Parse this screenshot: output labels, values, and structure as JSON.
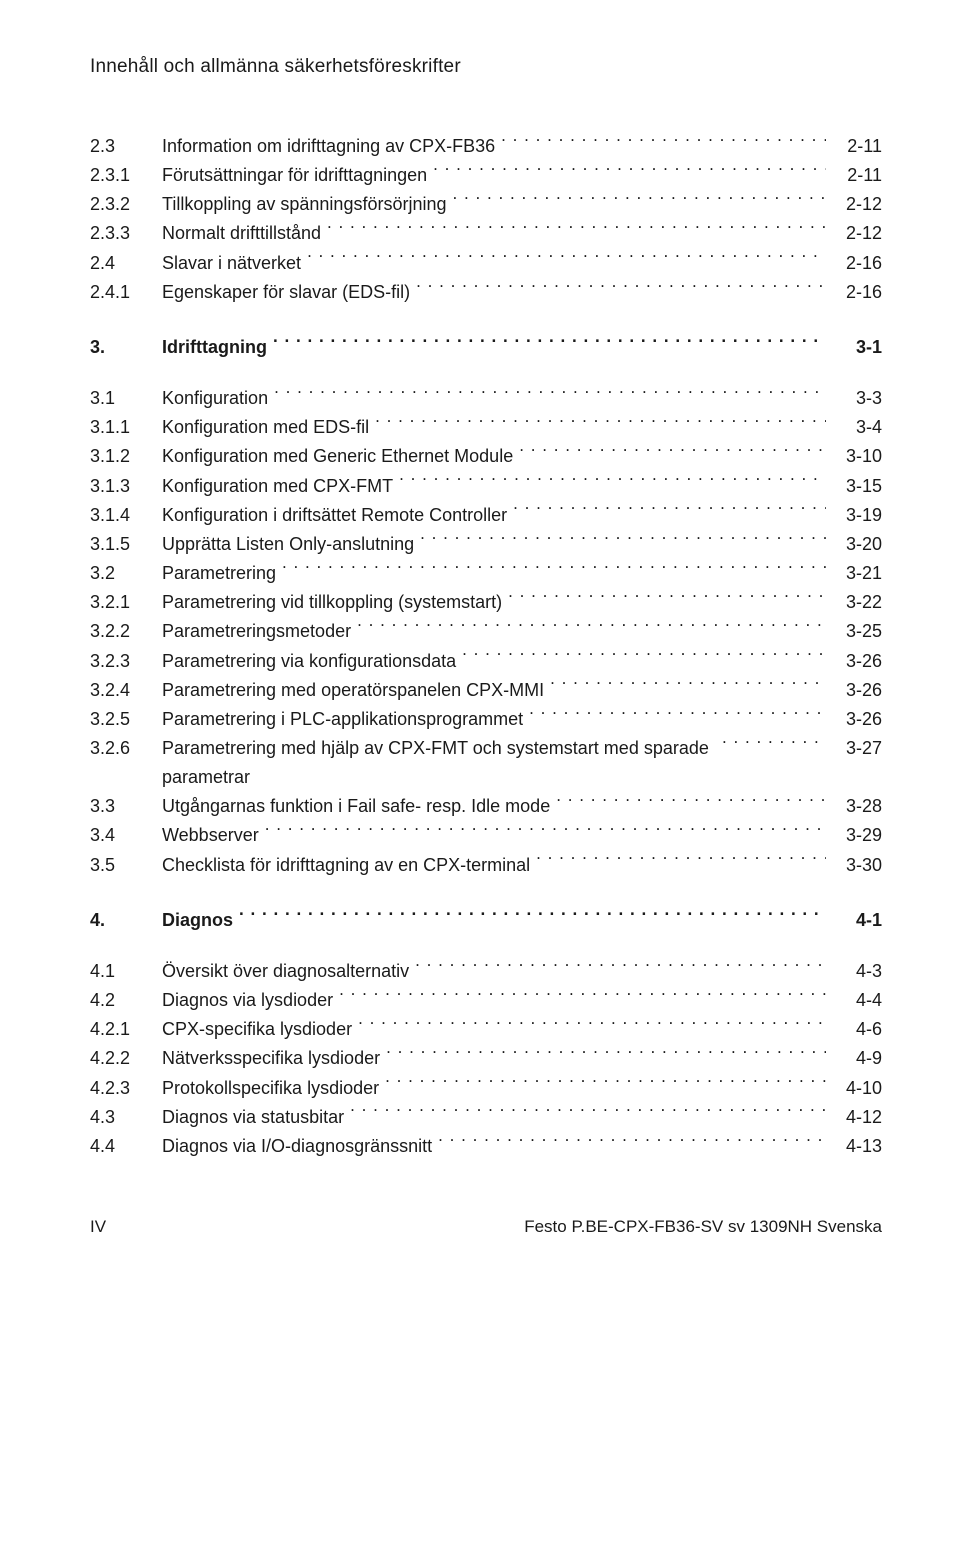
{
  "running_head": "Innehåll och allmänna säkerhetsföreskrifter",
  "footer": {
    "page_num": "IV",
    "doc_ref": "Festo P.BE-CPX-FB36-SV sv 1309NH Svenska"
  },
  "groups": [
    {
      "spacing": "block",
      "rows": [
        {
          "num": "2.3",
          "title": "Information om idrifttagning av CPX-FB36",
          "page": "2-11"
        },
        {
          "num": "2.3.1",
          "title": "Förutsättningar för idrifttagningen",
          "page": "2-11",
          "sub": true
        },
        {
          "num": "2.3.2",
          "title": "Tillkoppling av spänningsförsörjning",
          "page": "2-12",
          "sub": true
        },
        {
          "num": "2.3.3",
          "title": "Normalt drifttillstånd",
          "page": "2-12",
          "sub": true
        },
        {
          "num": "2.4",
          "title": "Slavar i nätverket",
          "page": "2-16"
        },
        {
          "num": "2.4.1",
          "title": "Egenskaper för slavar (EDS-fil)",
          "page": "2-16",
          "sub": true
        }
      ]
    },
    {
      "spacing": "chapter",
      "rows": [
        {
          "num": "3.",
          "title": "Idrifttagning",
          "page": "3-1",
          "bold": true
        }
      ]
    },
    {
      "spacing": "block",
      "rows": [
        {
          "num": "3.1",
          "title": "Konfiguration",
          "page": "3-3"
        },
        {
          "num": "3.1.1",
          "title": "Konfiguration med EDS-fil",
          "page": "3-4",
          "sub": true
        },
        {
          "num": "3.1.2",
          "title": "Konfiguration med Generic Ethernet Module",
          "page": "3-10",
          "sub": true
        },
        {
          "num": "3.1.3",
          "title": "Konfiguration med CPX-FMT",
          "page": "3-15",
          "sub": true
        },
        {
          "num": "3.1.4",
          "title": "Konfiguration i driftsättet Remote Controller",
          "page": "3-19",
          "sub": true
        },
        {
          "num": "3.1.5",
          "title": "Upprätta Listen Only-anslutning",
          "page": "3-20",
          "sub": true
        },
        {
          "num": "3.2",
          "title": "Parametrering",
          "page": "3-21"
        },
        {
          "num": "3.2.1",
          "title": "Parametrering vid tillkoppling (systemstart)",
          "page": "3-22",
          "sub": true
        },
        {
          "num": "3.2.2",
          "title": "Parametreringsmetoder",
          "page": "3-25",
          "sub": true
        },
        {
          "num": "3.2.3",
          "title": "Parametrering via konfigurationsdata",
          "page": "3-26",
          "sub": true
        },
        {
          "num": "3.2.4",
          "title": "Parametrering med operatörspanelen CPX-MMI",
          "page": "3-26",
          "sub": true
        },
        {
          "num": "3.2.5",
          "title": "Parametrering i PLC-applikationsprogrammet",
          "page": "3-26",
          "sub": true
        },
        {
          "num": "3.2.6",
          "title": "Parametrering med hjälp av CPX-FMT och systemstart med sparade parametrar",
          "page": "3-27",
          "sub": true,
          "wrap": true
        },
        {
          "num": "3.3",
          "title": "Utgångarnas funktion i Fail safe- resp. Idle mode",
          "page": "3-28"
        },
        {
          "num": "3.4",
          "title": "Webbserver",
          "page": "3-29"
        },
        {
          "num": "3.5",
          "title": "Checklista för idrifttagning av en CPX-terminal",
          "page": "3-30"
        }
      ]
    },
    {
      "spacing": "chapter",
      "rows": [
        {
          "num": "4.",
          "title": "Diagnos",
          "page": "4-1",
          "bold": true
        }
      ]
    },
    {
      "spacing": "block",
      "rows": [
        {
          "num": "4.1",
          "title": "Översikt över diagnosalternativ",
          "page": "4-3"
        },
        {
          "num": "4.2",
          "title": "Diagnos via lysdioder",
          "page": "4-4"
        },
        {
          "num": "4.2.1",
          "title": "CPX-specifika lysdioder",
          "page": "4-6",
          "sub": true
        },
        {
          "num": "4.2.2",
          "title": "Nätverksspecifika lysdioder",
          "page": "4-9",
          "sub": true
        },
        {
          "num": "4.2.3",
          "title": "Protokollspecifika lysdioder",
          "page": "4-10",
          "sub": true
        },
        {
          "num": "4.3",
          "title": "Diagnos via statusbitar",
          "page": "4-12"
        },
        {
          "num": "4.4",
          "title": "Diagnos via I/O-diagnosgränssnitt",
          "page": "4-13"
        }
      ]
    }
  ]
}
